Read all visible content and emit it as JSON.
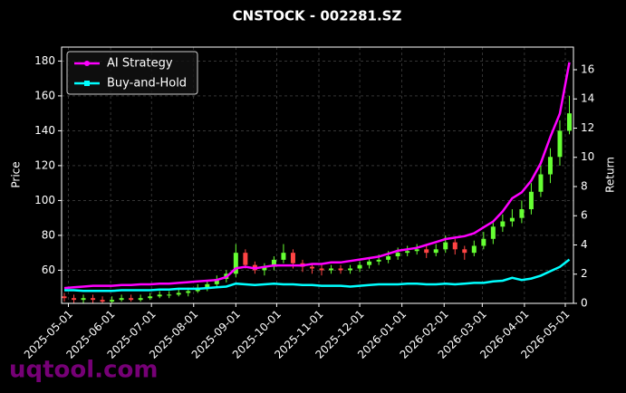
{
  "chart_data": {
    "type": "candlestick",
    "title": "CNSTOCK - 002281.SZ",
    "ylabel": "Price",
    "y2label": "Return",
    "watermark": "uqtool.com",
    "x": [
      "2025-04-28",
      "2025-05-05",
      "2025-05-12",
      "2025-05-19",
      "2025-05-26",
      "2025-06-02",
      "2025-06-09",
      "2025-06-16",
      "2025-06-23",
      "2025-06-30",
      "2025-07-07",
      "2025-07-14",
      "2025-07-21",
      "2025-07-28",
      "2025-08-04",
      "2025-08-11",
      "2025-08-18",
      "2025-08-25",
      "2025-09-01",
      "2025-09-08",
      "2025-09-15",
      "2025-09-22",
      "2025-09-29",
      "2025-10-06",
      "2025-10-13",
      "2025-10-20",
      "2025-10-27",
      "2025-11-03",
      "2025-11-10",
      "2025-11-17",
      "2025-11-24",
      "2025-12-01",
      "2025-12-08",
      "2025-12-15",
      "2025-12-22",
      "2025-12-29",
      "2026-01-05",
      "2026-01-12",
      "2026-01-19",
      "2026-01-26",
      "2026-02-02",
      "2026-02-09",
      "2026-02-16",
      "2026-02-23",
      "2026-03-02",
      "2026-03-09",
      "2026-03-16",
      "2026-03-23",
      "2026-03-30",
      "2026-04-06",
      "2026-04-13",
      "2026-04-20",
      "2026-04-27",
      "2026-05-04"
    ],
    "open": [
      45,
      44,
      43,
      44,
      43,
      42,
      43,
      44,
      43,
      44,
      45,
      46,
      46,
      47,
      48,
      50,
      52,
      55,
      58,
      70,
      63,
      60,
      62,
      66,
      70,
      64,
      62,
      61,
      60,
      61,
      60,
      61,
      63,
      65,
      66,
      68,
      70,
      71,
      72,
      70,
      72,
      76,
      72,
      70,
      74,
      78,
      85,
      88,
      90,
      95,
      105,
      115,
      125,
      140
    ],
    "high": [
      47,
      46,
      46,
      46,
      45,
      45,
      46,
      46,
      46,
      47,
      48,
      48,
      49,
      50,
      52,
      54,
      57,
      60,
      75,
      72,
      65,
      64,
      68,
      75,
      72,
      66,
      64,
      63,
      63,
      63,
      63,
      65,
      67,
      69,
      71,
      73,
      74,
      75,
      74,
      75,
      80,
      78,
      74,
      77,
      82,
      88,
      92,
      95,
      100,
      110,
      120,
      130,
      146,
      160
    ],
    "low": [
      42,
      41,
      41,
      41,
      41,
      41,
      42,
      42,
      42,
      43,
      44,
      44,
      45,
      45,
      47,
      48,
      50,
      53,
      56,
      61,
      58,
      57,
      60,
      64,
      61,
      59,
      58,
      57,
      58,
      58,
      58,
      59,
      61,
      63,
      64,
      66,
      68,
      69,
      67,
      68,
      70,
      69,
      66,
      68,
      72,
      75,
      82,
      85,
      87,
      92,
      102,
      110,
      120,
      138
    ],
    "close": [
      44,
      43,
      44,
      43,
      42,
      43,
      44,
      43,
      44,
      45,
      46,
      46,
      47,
      48,
      50,
      52,
      55,
      58,
      70,
      63,
      60,
      62,
      66,
      70,
      64,
      62,
      61,
      60,
      61,
      60,
      61,
      63,
      65,
      66,
      68,
      70,
      71,
      72,
      70,
      72,
      76,
      72,
      70,
      74,
      78,
      85,
      88,
      90,
      95,
      105,
      115,
      125,
      140,
      150
    ],
    "up_color": "#66ff33",
    "down_color": "#ff4444",
    "series": [
      {
        "name": "AI Strategy",
        "color": "#ff00ff",
        "marker": "circle",
        "axis": "y2",
        "values": [
          1.05,
          1.1,
          1.15,
          1.2,
          1.2,
          1.2,
          1.25,
          1.25,
          1.3,
          1.3,
          1.35,
          1.35,
          1.4,
          1.45,
          1.5,
          1.55,
          1.6,
          1.8,
          2.4,
          2.5,
          2.4,
          2.5,
          2.6,
          2.6,
          2.6,
          2.6,
          2.7,
          2.7,
          2.8,
          2.8,
          2.9,
          3.0,
          3.1,
          3.2,
          3.4,
          3.6,
          3.7,
          3.8,
          4.0,
          4.2,
          4.4,
          4.5,
          4.6,
          4.8,
          5.2,
          5.6,
          6.3,
          7.2,
          7.6,
          8.4,
          9.6,
          11.4,
          13.0,
          16.5
        ]
      },
      {
        "name": "Buy-and-Hold",
        "color": "#00ffff",
        "marker": "square",
        "axis": "y2",
        "values": [
          0.9,
          0.9,
          0.85,
          0.85,
          0.85,
          0.85,
          0.9,
          0.9,
          0.9,
          0.9,
          0.95,
          0.95,
          1.0,
          1.0,
          1.0,
          1.05,
          1.1,
          1.15,
          1.35,
          1.3,
          1.25,
          1.3,
          1.35,
          1.3,
          1.3,
          1.25,
          1.25,
          1.2,
          1.2,
          1.2,
          1.15,
          1.2,
          1.25,
          1.3,
          1.3,
          1.3,
          1.35,
          1.35,
          1.3,
          1.3,
          1.35,
          1.3,
          1.35,
          1.4,
          1.4,
          1.5,
          1.55,
          1.75,
          1.6,
          1.7,
          1.9,
          2.2,
          2.5,
          3.0
        ]
      }
    ],
    "xlim": [
      "2025-04-26",
      "2026-05-07"
    ],
    "xticks": [
      "2025-05-01",
      "2025-06-01",
      "2025-07-01",
      "2025-08-01",
      "2025-09-01",
      "2025-10-01",
      "2025-11-01",
      "2025-12-01",
      "2026-01-01",
      "2026-02-01",
      "2026-03-01",
      "2026-04-01",
      "2026-05-01"
    ],
    "ylim": [
      41,
      188
    ],
    "yticks": [
      60,
      80,
      100,
      120,
      140,
      160,
      180
    ],
    "y2lim": [
      0,
      17.55
    ],
    "y2ticks": [
      0,
      2,
      4,
      6,
      8,
      10,
      12,
      14,
      16
    ],
    "grid": true,
    "legend": "upper left"
  }
}
